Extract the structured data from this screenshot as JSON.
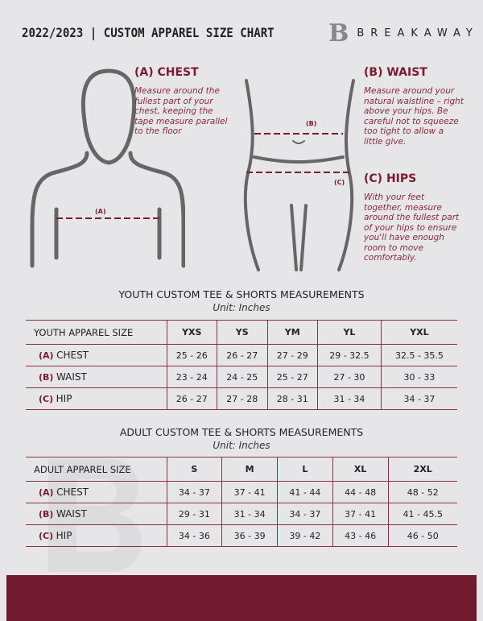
{
  "header": {
    "title": "2022/2023  |  CUSTOM APPAREL SIZE CHART",
    "brand_mark": "B",
    "brand": "BREAKAWAY"
  },
  "chest": {
    "heading": "(A) CHEST",
    "text": "Measure around the fullest part of your chest, keeping the tape measure parallel to the floor",
    "marker": "(A)"
  },
  "waist": {
    "heading": "(B) WAIST",
    "text": "Measure around your natural waistline – right above your hips. Be careful not to squeeze too tight to allow a little give.",
    "marker": "(B)"
  },
  "hips": {
    "heading": "(C) HIPS",
    "text": "With your feet together, measure around the fullest part of your hips to ensure you'll have enough room to move comfortably.",
    "marker": "(C)"
  },
  "youth": {
    "title": "YOUTH CUSTOM TEE & SHORTS MEASUREMENTS",
    "unit": "Unit: Inches",
    "headers": [
      "YOUTH APPAREL SIZE",
      "YXS",
      "YS",
      "YM",
      "YL",
      "YXL"
    ],
    "rows": [
      {
        "tag": "(A)",
        "name": "CHEST",
        "values": [
          "25 - 26",
          "26 - 27",
          "27 - 29",
          "29 - 32.5",
          "32.5 - 35.5"
        ]
      },
      {
        "tag": "(B)",
        "name": "WAIST",
        "values": [
          "23 - 24",
          "24 - 25",
          "25 - 27",
          "27 - 30",
          "30 - 33"
        ]
      },
      {
        "tag": "(C)",
        "name": "HIP",
        "values": [
          "26 - 27",
          "27 - 28",
          "28 - 31",
          "31 - 34",
          "34 - 37"
        ]
      }
    ]
  },
  "adult": {
    "title": "ADULT CUSTOM TEE & SHORTS MEASUREMENTS",
    "unit": "Unit: Inches",
    "headers": [
      "ADULT APPAREL SIZE",
      "S",
      "M",
      "L",
      "XL",
      "2XL"
    ],
    "rows": [
      {
        "tag": "(A)",
        "name": "CHEST",
        "values": [
          "34 - 37",
          "37 - 41",
          "41 - 44",
          "44 - 48",
          "48 - 52"
        ]
      },
      {
        "tag": "(B)",
        "name": "WAIST",
        "values": [
          "29 - 31",
          "31 - 34",
          "34 - 37",
          "37 - 41",
          "41 - 45.5"
        ]
      },
      {
        "tag": "(C)",
        "name": "HIP",
        "values": [
          "34 - 36",
          "36 - 39",
          "39 - 42",
          "43 - 46",
          "46 - 50"
        ]
      }
    ]
  },
  "colors": {
    "accent": "#7a1b30",
    "footer": "#6f1a2e",
    "background": "#e6e6e8"
  }
}
